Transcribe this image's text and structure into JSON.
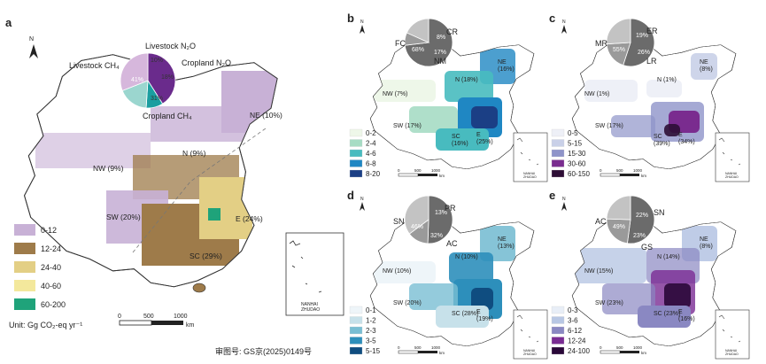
{
  "figure": {
    "approval_number": "审图号: GS京(2025)0149号",
    "unit_label": "Unit: Gg CO₂-eq yr⁻¹",
    "north_label": "N",
    "scale_ticks": [
      "0",
      "500",
      "1000"
    ],
    "scale_unit": "km",
    "inset_label": [
      "NANHAI",
      "ZHUDAO"
    ]
  },
  "colors": {
    "a_bins": [
      "#c8b1d6",
      "#9e7b4a",
      "#e3cf85",
      "#f3e89c",
      "#1fa37a"
    ],
    "b_bins": [
      "#eef7e9",
      "#a6dcc4",
      "#48bbbf",
      "#1f87c3",
      "#1b3f85"
    ],
    "c_bins": [
      "#eef0f7",
      "#c9d0e8",
      "#8f94c9",
      "#7a2c8f",
      "#2e0e36"
    ],
    "d_bins": [
      "#eef5f9",
      "#c7e1ea",
      "#79bed3",
      "#2d8fbb",
      "#0f4d80"
    ],
    "e_bins": [
      "#e8eef7",
      "#b8c7e4",
      "#8a88c2",
      "#7a2c93",
      "#2a0838"
    ],
    "pie_a": [
      "#6a2b8c",
      "#1a9ea0",
      "#9bd6cf",
      "#d6b7dc"
    ],
    "pie_gray": [
      "#6b6b6b",
      "#9a9a9a",
      "#c3c3c3"
    ]
  },
  "panels": {
    "a": {
      "letter": "a",
      "legend": [
        "0-12",
        "12-24",
        "24-40",
        "40-60",
        "60-200"
      ],
      "regions": [
        {
          "label": "NE (10%)"
        },
        {
          "label": "N (9%)"
        },
        {
          "label": "NW (9%)"
        },
        {
          "label": "SW (20%)"
        },
        {
          "label": "E\n(24%)"
        },
        {
          "label": "SC (29%)"
        }
      ],
      "pie": {
        "labels": [
          "Livestock CH₄",
          "Livestock N₂O",
          "Cropland N₂O",
          "Cropland CH₄"
        ],
        "pct_labels": [
          "41%",
          "10%",
          "18%",
          "31%"
        ],
        "values": [
          41,
          10,
          18,
          31
        ]
      }
    },
    "b": {
      "letter": "b",
      "legend": [
        "0-2",
        "2-4",
        "4-6",
        "6-8",
        "8-20"
      ],
      "regions": [
        {
          "label": "NE\n(16%)"
        },
        {
          "label": "N (18%)"
        },
        {
          "label": "NW (7%)"
        },
        {
          "label": "SW (17%)"
        },
        {
          "label": "E\n(25%)"
        },
        {
          "label": "SC\n(16%)"
        }
      ],
      "pie": {
        "labels": [
          "FC",
          "CR",
          "NM"
        ],
        "pct_labels": [
          "68%",
          "8%",
          "17%"
        ],
        "values": [
          68,
          8,
          17
        ]
      }
    },
    "c": {
      "letter": "c",
      "legend": [
        "0-5",
        "5-15",
        "15-30",
        "30-60",
        "60-150"
      ],
      "regions": [
        {
          "label": "NE\n(8%)"
        },
        {
          "label": "N (1%)"
        },
        {
          "label": "NW (1%)"
        },
        {
          "label": "SW (17%)"
        },
        {
          "label": "E\n(34%)"
        },
        {
          "label": "SC\n(39%)"
        }
      ],
      "pie": {
        "labels": [
          "MR",
          "ER",
          "LR"
        ],
        "pct_labels": [
          "55%",
          "19%",
          "26%"
        ],
        "values": [
          55,
          19,
          26
        ]
      }
    },
    "d": {
      "letter": "d",
      "legend": [
        "0-1",
        "1-2",
        "2-3",
        "3-5",
        "5-15"
      ],
      "regions": [
        {
          "label": "NE\n(13%)"
        },
        {
          "label": "N (10%)"
        },
        {
          "label": "NW (10%)"
        },
        {
          "label": "SW (20%)"
        },
        {
          "label": "E\n(19%)"
        },
        {
          "label": "SC (28%)"
        }
      ],
      "pie": {
        "labels": [
          "SN",
          "PR",
          "AC"
        ],
        "pct_labels": [
          "46%",
          "13%",
          "32%"
        ],
        "values": [
          46,
          13,
          32
        ]
      }
    },
    "e": {
      "letter": "e",
      "legend": [
        "0-3",
        "3-6",
        "6-12",
        "12-24",
        "24-100"
      ],
      "regions": [
        {
          "label": "NE\n(8%)"
        },
        {
          "label": "N (14%)"
        },
        {
          "label": "NW (15%)"
        },
        {
          "label": "SW (23%)"
        },
        {
          "label": "E\n(16%)"
        },
        {
          "label": "SC (23%)"
        }
      ],
      "pie": {
        "labels": [
          "AC",
          "SN",
          "GS"
        ],
        "pct_labels": [
          "49%",
          "22%",
          "23%"
        ],
        "values": [
          49,
          22,
          23
        ]
      }
    }
  }
}
